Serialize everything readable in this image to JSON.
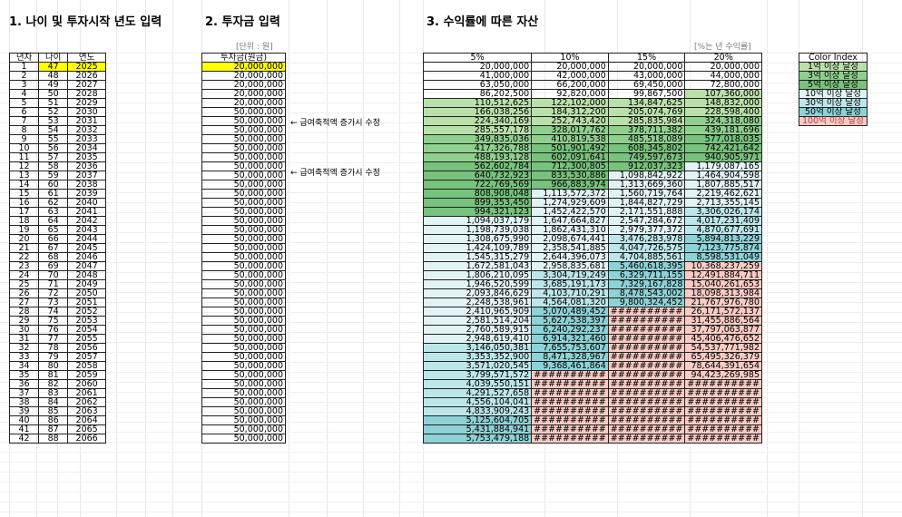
{
  "colors": {
    "yellow": "#ffff00",
    "g0": "#e2f1db",
    "g1": "#b9e0a9",
    "g2": "#8fd08e",
    "g3": "#77c27c",
    "c0": "#e2f3f6",
    "c1": "#bce6ea",
    "c2": "#8dd2d6",
    "pink": "#f8cbc4"
  },
  "section1": {
    "title": "1. 나이 및 투자시작 년도 입력",
    "headers": [
      "년차",
      "나이",
      "연도"
    ]
  },
  "section2": {
    "title": "2. 투자금 입력",
    "unit": "[단위 : 원]",
    "header": "투자금(원금)"
  },
  "section3": {
    "title": "3. 수익률에 따른 자산",
    "unit": "[%는 년 수익률]",
    "headers": [
      "5%",
      "10%",
      "15%",
      "20%"
    ]
  },
  "notes": [
    "← 급여축적액 증가시 수정",
    "← 급여축적액 증가시 수정"
  ],
  "legend": {
    "title": "Color Index",
    "items": [
      {
        "label": "1억 이상 달성",
        "color": "g1"
      },
      {
        "label": "3억 이상 달성",
        "color": "g2"
      },
      {
        "label": "5억 이상 달성",
        "color": "g3"
      },
      {
        "label": "10억 이상 달성",
        "color": "c0"
      },
      {
        "label": "30억 이상 달성",
        "color": "c1"
      },
      {
        "label": "50억 이상 달성",
        "color": "c2"
      },
      {
        "label": "100억 이상 달성",
        "color": "pink"
      }
    ]
  },
  "rows": [
    [
      "1",
      "47",
      "2025",
      "20,000,000",
      "20,000,000",
      "20,000,000",
      "20,000,000",
      "20,000,000"
    ],
    [
      "2",
      "48",
      "2026",
      "20,000,000",
      "41,000,000",
      "42,000,000",
      "43,000,000",
      "44,000,000"
    ],
    [
      "3",
      "49",
      "2027",
      "20,000,000",
      "63,050,000",
      "66,200,000",
      "69,450,000",
      "72,800,000"
    ],
    [
      "4",
      "50",
      "2028",
      "20,000,000",
      "86,202,500",
      "92,820,000",
      "99,867,500",
      "107,360,000"
    ],
    [
      "5",
      "51",
      "2029",
      "20,000,000",
      "110,512,625",
      "122,102,000",
      "134,847,625",
      "148,832,000"
    ],
    [
      "6",
      "52",
      "2030",
      "50,000,000",
      "166,038,256",
      "184,312,200",
      "205,074,769",
      "228,598,400"
    ],
    [
      "7",
      "53",
      "2031",
      "50,000,000",
      "224,340,169",
      "252,743,420",
      "285,835,984",
      "324,318,080"
    ],
    [
      "8",
      "54",
      "2032",
      "50,000,000",
      "285,557,178",
      "328,017,762",
      "378,711,382",
      "439,181,696"
    ],
    [
      "9",
      "55",
      "2033",
      "50,000,000",
      "349,835,036",
      "410,819,538",
      "485,518,089",
      "577,018,035"
    ],
    [
      "10",
      "56",
      "2034",
      "50,000,000",
      "417,326,788",
      "501,901,492",
      "608,345,802",
      "742,421,642"
    ],
    [
      "11",
      "57",
      "2035",
      "50,000,000",
      "488,193,128",
      "602,091,641",
      "749,597,673",
      "940,905,971"
    ],
    [
      "12",
      "58",
      "2036",
      "50,000,000",
      "562,602,784",
      "712,300,805",
      "912,037,323",
      "1,179,087,165"
    ],
    [
      "13",
      "59",
      "2037",
      "50,000,000",
      "640,732,923",
      "833,530,886",
      "1,098,842,922",
      "1,464,904,598"
    ],
    [
      "14",
      "60",
      "2038",
      "50,000,000",
      "722,769,569",
      "966,883,974",
      "1,313,669,360",
      "1,807,885,517"
    ],
    [
      "15",
      "61",
      "2039",
      "50,000,000",
      "808,908,048",
      "1,113,572,372",
      "1,560,719,764",
      "2,219,462,621"
    ],
    [
      "16",
      "62",
      "2040",
      "50,000,000",
      "899,353,450",
      "1,274,929,609",
      "1,844,827,729",
      "2,713,355,145"
    ],
    [
      "17",
      "63",
      "2041",
      "50,000,000",
      "994,321,123",
      "1,452,422,570",
      "2,171,551,888",
      "3,306,026,174"
    ],
    [
      "18",
      "64",
      "2042",
      "50,000,000",
      "1,094,037,179",
      "1,647,664,827",
      "2,547,284,672",
      "4,017,231,409"
    ],
    [
      "19",
      "65",
      "2043",
      "50,000,000",
      "1,198,739,038",
      "1,862,431,310",
      "2,979,377,372",
      "4,870,677,691"
    ],
    [
      "20",
      "66",
      "2044",
      "50,000,000",
      "1,308,675,990",
      "2,098,674,441",
      "3,476,283,978",
      "5,894,813,229"
    ],
    [
      "21",
      "67",
      "2045",
      "50,000,000",
      "1,424,109,789",
      "2,358,541,885",
      "4,047,726,575",
      "7,123,775,874"
    ],
    [
      "22",
      "68",
      "2046",
      "50,000,000",
      "1,545,315,279",
      "2,644,396,073",
      "4,704,885,561",
      "8,598,531,049"
    ],
    [
      "23",
      "69",
      "2047",
      "50,000,000",
      "1,672,581,043",
      "2,958,835,681",
      "5,460,618,395",
      "10,368,237,259"
    ],
    [
      "24",
      "70",
      "2048",
      "50,000,000",
      "1,806,210,095",
      "3,304,719,249",
      "6,329,711,155",
      "12,491,884,711"
    ],
    [
      "25",
      "71",
      "2049",
      "50,000,000",
      "1,946,520,599",
      "3,685,191,173",
      "7,329,167,828",
      "15,040,261,653"
    ],
    [
      "26",
      "72",
      "2050",
      "50,000,000",
      "2,093,846,629",
      "4,103,710,291",
      "8,478,543,002",
      "18,098,313,984"
    ],
    [
      "27",
      "73",
      "2051",
      "50,000,000",
      "2,248,538,961",
      "4,564,081,320",
      "9,800,324,452",
      "21,767,976,780"
    ],
    [
      "28",
      "74",
      "2052",
      "50,000,000",
      "2,410,965,909",
      "5,070,489,452",
      "##########",
      "26,171,572,137"
    ],
    [
      "29",
      "75",
      "2053",
      "50,000,000",
      "2,581,514,204",
      "5,627,538,397",
      "##########",
      "31,455,886,564"
    ],
    [
      "30",
      "76",
      "2054",
      "50,000,000",
      "2,760,589,915",
      "6,240,292,237",
      "##########",
      "37,797,063,877"
    ],
    [
      "31",
      "77",
      "2055",
      "50,000,000",
      "2,948,619,410",
      "6,914,321,460",
      "##########",
      "45,406,476,652"
    ],
    [
      "32",
      "78",
      "2056",
      "50,000,000",
      "3,146,050,381",
      "7,655,753,607",
      "##########",
      "54,537,771,982"
    ],
    [
      "33",
      "79",
      "2057",
      "50,000,000",
      "3,353,352,900",
      "8,471,328,967",
      "##########",
      "65,495,326,379"
    ],
    [
      "34",
      "80",
      "2058",
      "50,000,000",
      "3,571,020,545",
      "9,368,461,864",
      "##########",
      "78,644,391,654"
    ],
    [
      "35",
      "81",
      "2059",
      "50,000,000",
      "3,799,571,572",
      "##########",
      "##########",
      "94,423,269,985"
    ],
    [
      "36",
      "82",
      "2060",
      "50,000,000",
      "4,039,550,151",
      "##########",
      "##########",
      "##########"
    ],
    [
      "37",
      "83",
      "2061",
      "50,000,000",
      "4,291,527,658",
      "##########",
      "##########",
      "##########"
    ],
    [
      "38",
      "84",
      "2062",
      "50,000,000",
      "4,556,104,041",
      "##########",
      "##########",
      "##########"
    ],
    [
      "39",
      "85",
      "2063",
      "50,000,000",
      "4,833,909,243",
      "##########",
      "##########",
      "##########"
    ],
    [
      "40",
      "86",
      "2064",
      "50,000,000",
      "5,125,604,705",
      "##########",
      "##########",
      "##########"
    ],
    [
      "41",
      "87",
      "2065",
      "50,000,000",
      "5,431,884,941",
      "##########",
      "##########",
      "##########"
    ],
    [
      "42",
      "88",
      "2066",
      "50,000,000",
      "5,753,479,188",
      "##########",
      "##########",
      "##########"
    ]
  ]
}
